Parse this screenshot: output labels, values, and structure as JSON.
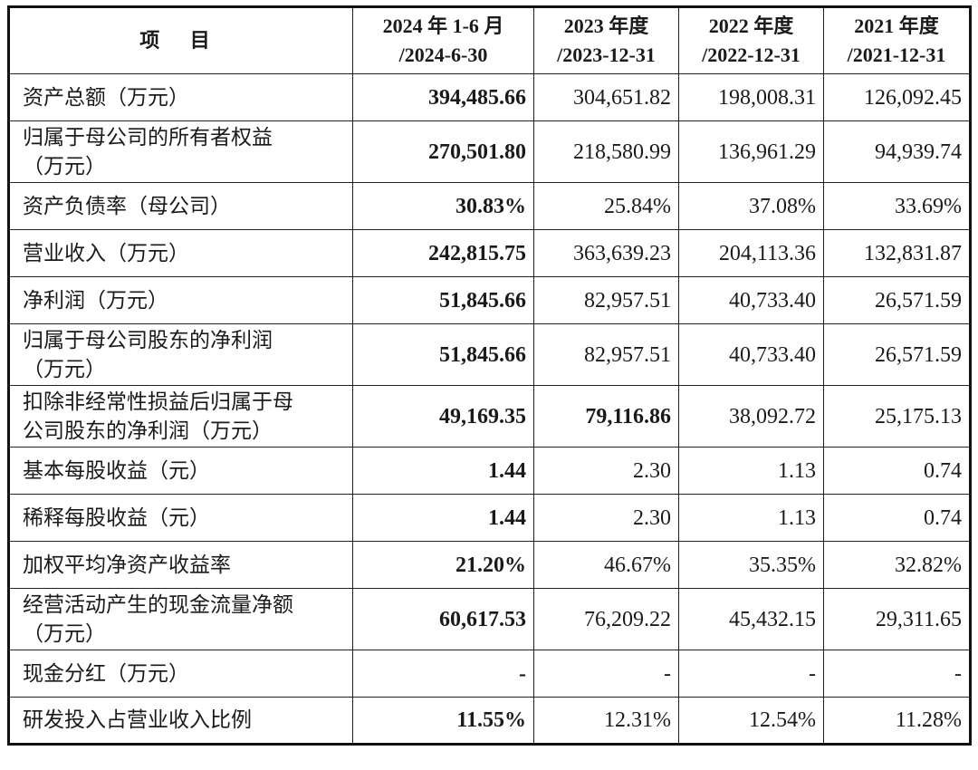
{
  "headers": {
    "item": "项 目",
    "col1_line1": "2024 年 1-6 月",
    "col1_line2": "/2024-6-30",
    "col2_line1": "2023 年度",
    "col2_line2": "/2023-12-31",
    "col3_line1": "2022 年度",
    "col3_line2": "/2022-12-31",
    "col4_line1": "2021 年度",
    "col4_line2": "/2021-12-31"
  },
  "rows": [
    {
      "label_1": "资产总额（万元）",
      "v1": "394,485.66",
      "v2": "304,651.82",
      "v3": "198,008.31",
      "v4": "126,092.45"
    },
    {
      "label_1": "归属于母公司的所有者权益",
      "label_2": "（万元）",
      "v1": "270,501.80",
      "v2": "218,580.99",
      "v3": "136,961.29",
      "v4": "94,939.74"
    },
    {
      "label_1": "资产负债率（母公司）",
      "v1": "30.83%",
      "v2": "25.84%",
      "v3": "37.08%",
      "v4": "33.69%"
    },
    {
      "label_1": "营业收入（万元）",
      "v1": "242,815.75",
      "v2": "363,639.23",
      "v3": "204,113.36",
      "v4": "132,831.87"
    },
    {
      "label_1": "净利润（万元）",
      "v1": "51,845.66",
      "v2": "82,957.51",
      "v3": "40,733.40",
      "v4": "26,571.59"
    },
    {
      "label_1": "归属于母公司股东的净利润",
      "label_2": "（万元）",
      "v1": "51,845.66",
      "v2": "82,957.51",
      "v3": "40,733.40",
      "v4": "26,571.59"
    },
    {
      "label_1": "扣除非经常性损益后归属于母",
      "label_2": "公司股东的净利润（万元）",
      "v1": "49,169.35",
      "v2": "79,116.86",
      "v3": "38,092.72",
      "v4": "25,175.13"
    },
    {
      "label_1": "基本每股收益（元）",
      "v1": "1.44",
      "v2": "2.30",
      "v3": "1.13",
      "v4": "0.74"
    },
    {
      "label_1": "稀释每股收益（元）",
      "v1": "1.44",
      "v2": "2.30",
      "v3": "1.13",
      "v4": "0.74"
    },
    {
      "label_1": "加权平均净资产收益率",
      "v1": "21.20%",
      "v2": "46.67%",
      "v3": "35.35%",
      "v4": "32.82%"
    },
    {
      "label_1": "经营活动产生的现金流量净额",
      "label_2": "（万元）",
      "v1": "60,617.53",
      "v2": "76,209.22",
      "v3": "45,432.15",
      "v4": "29,311.65"
    },
    {
      "label_1": "现金分红（万元）",
      "v1": "-",
      "v2": "-",
      "v3": "-",
      "v4": "-"
    },
    {
      "label_1": "研发投入占营业收入比例",
      "v1": "11.55%",
      "v2": "12.31%",
      "v3": "12.54%",
      "v4": "11.28%"
    }
  ]
}
